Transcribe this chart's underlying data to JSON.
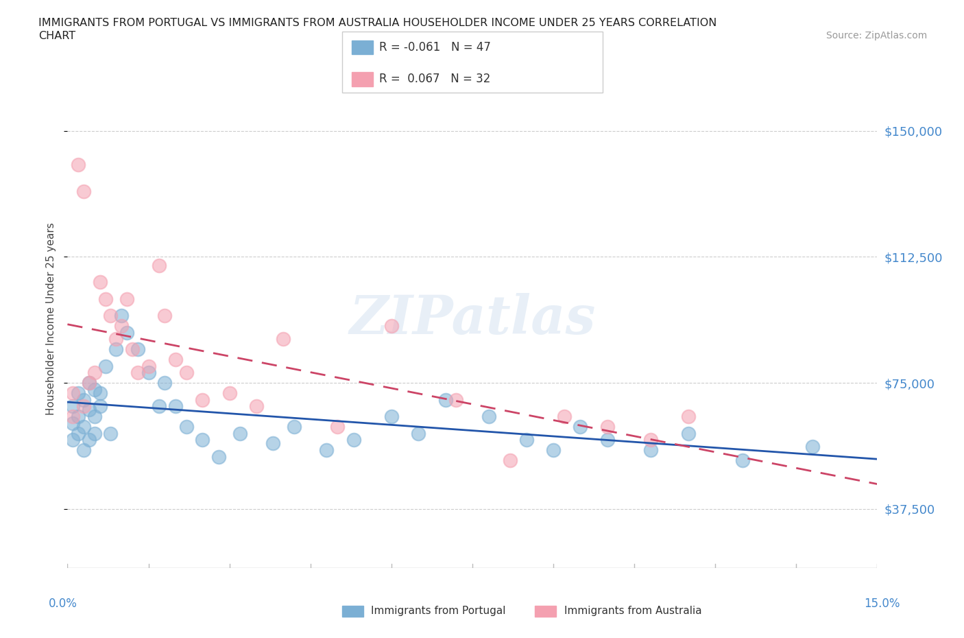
{
  "title_line1": "IMMIGRANTS FROM PORTUGAL VS IMMIGRANTS FROM AUSTRALIA HOUSEHOLDER INCOME UNDER 25 YEARS CORRELATION",
  "title_line2": "CHART",
  "source_text": "Source: ZipAtlas.com",
  "ylabel": "Householder Income Under 25 years",
  "yticks": [
    37500,
    75000,
    112500,
    150000
  ],
  "ytick_labels": [
    "$37,500",
    "$75,000",
    "$112,500",
    "$150,000"
  ],
  "xmin": 0.0,
  "xmax": 0.15,
  "ymin": 20000,
  "ymax": 168000,
  "legend_r1": "R = -0.061",
  "legend_n1": "N = 47",
  "legend_r2": "R =  0.067",
  "legend_n2": "N = 32",
  "color_portugal": "#7BAFD4",
  "color_australia": "#F4A0B0",
  "color_portugal_line": "#2255AA",
  "color_australia_line": "#CC4466",
  "watermark": "ZIPatlas",
  "portugal_x": [
    0.001,
    0.001,
    0.001,
    0.002,
    0.002,
    0.002,
    0.003,
    0.003,
    0.003,
    0.004,
    0.004,
    0.004,
    0.005,
    0.005,
    0.005,
    0.006,
    0.006,
    0.007,
    0.008,
    0.009,
    0.01,
    0.011,
    0.013,
    0.015,
    0.017,
    0.018,
    0.02,
    0.022,
    0.025,
    0.028,
    0.032,
    0.038,
    0.042,
    0.048,
    0.053,
    0.06,
    0.065,
    0.07,
    0.078,
    0.085,
    0.09,
    0.095,
    0.1,
    0.108,
    0.115,
    0.125,
    0.138
  ],
  "portugal_y": [
    68000,
    63000,
    58000,
    72000,
    65000,
    60000,
    70000,
    62000,
    55000,
    75000,
    67000,
    58000,
    73000,
    65000,
    60000,
    68000,
    72000,
    80000,
    60000,
    85000,
    95000,
    90000,
    85000,
    78000,
    68000,
    75000,
    68000,
    62000,
    58000,
    53000,
    60000,
    57000,
    62000,
    55000,
    58000,
    65000,
    60000,
    70000,
    65000,
    58000,
    55000,
    62000,
    58000,
    55000,
    60000,
    52000,
    56000
  ],
  "australia_x": [
    0.001,
    0.001,
    0.002,
    0.003,
    0.003,
    0.004,
    0.005,
    0.006,
    0.007,
    0.008,
    0.009,
    0.01,
    0.011,
    0.012,
    0.013,
    0.015,
    0.017,
    0.018,
    0.02,
    0.022,
    0.025,
    0.03,
    0.035,
    0.04,
    0.05,
    0.06,
    0.072,
    0.082,
    0.092,
    0.1,
    0.108,
    0.115
  ],
  "australia_y": [
    72000,
    65000,
    140000,
    132000,
    68000,
    75000,
    78000,
    105000,
    100000,
    95000,
    88000,
    92000,
    100000,
    85000,
    78000,
    80000,
    110000,
    95000,
    82000,
    78000,
    70000,
    72000,
    68000,
    88000,
    62000,
    92000,
    70000,
    52000,
    65000,
    62000,
    58000,
    65000
  ]
}
